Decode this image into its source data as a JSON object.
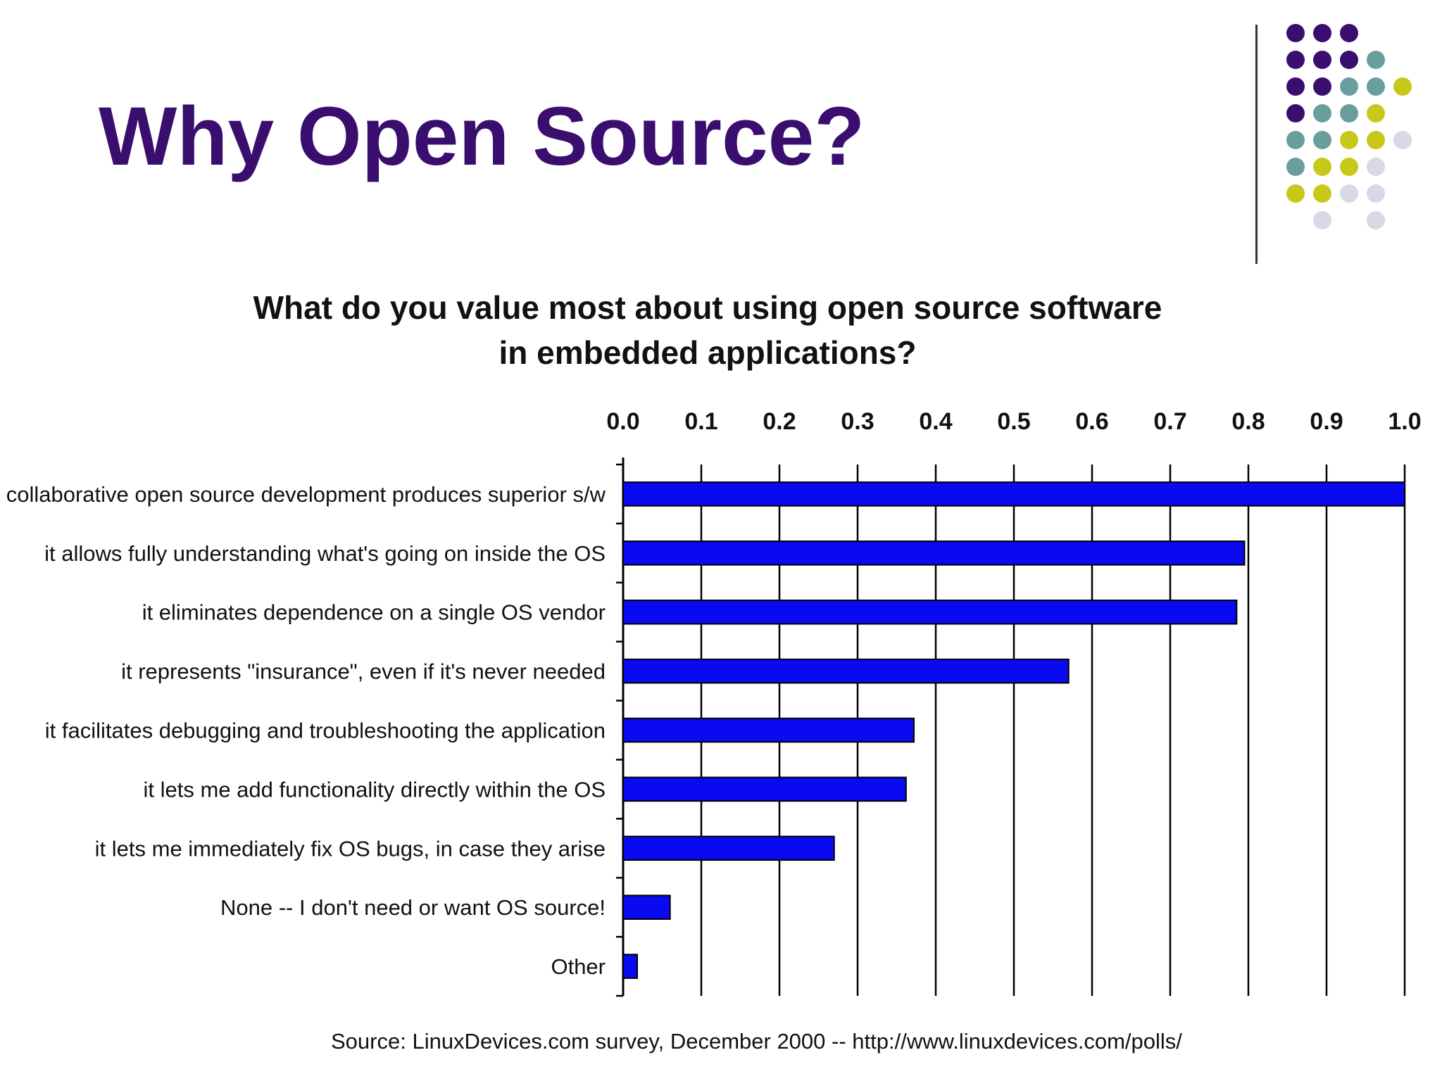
{
  "slide": {
    "title": "Why Open Source?"
  },
  "decoration": {
    "dot_colors": [
      "#3a0e6e",
      "#6a9e9e",
      "#c8c81a",
      "#d8d8e6"
    ]
  },
  "chart_data": {
    "type": "bar",
    "orientation": "horizontal",
    "title_lines": [
      "What do you value most about using open source software",
      "in embedded applications?"
    ],
    "categories": [
      "collaborative open source development produces superior s/w",
      "it allows fully understanding what's going on inside the OS",
      "it eliminates dependence on a single OS vendor",
      "it represents \"insurance\", even if it's never needed",
      "it facilitates debugging and troubleshooting the application",
      "it lets me add functionality directly within the OS",
      "it lets me immediately fix OS bugs, in case they arise",
      "None -- I don't need or want OS source!",
      "Other"
    ],
    "values": [
      1.0,
      0.795,
      0.785,
      0.57,
      0.372,
      0.362,
      0.27,
      0.06,
      0.018
    ],
    "xlim": [
      0,
      1.0
    ],
    "x_ticks": [
      "0.0",
      "0.1",
      "0.2",
      "0.3",
      "0.4",
      "0.5",
      "0.6",
      "0.7",
      "0.8",
      "0.9",
      "1.0"
    ],
    "xlabel": "",
    "ylabel": "",
    "grid": true,
    "bar_color": "#0a0af0",
    "legend": "none"
  },
  "source_note": "Source:  LinuxDevices.com survey, December 2000 -- http://www.linuxdevices.com/polls/"
}
